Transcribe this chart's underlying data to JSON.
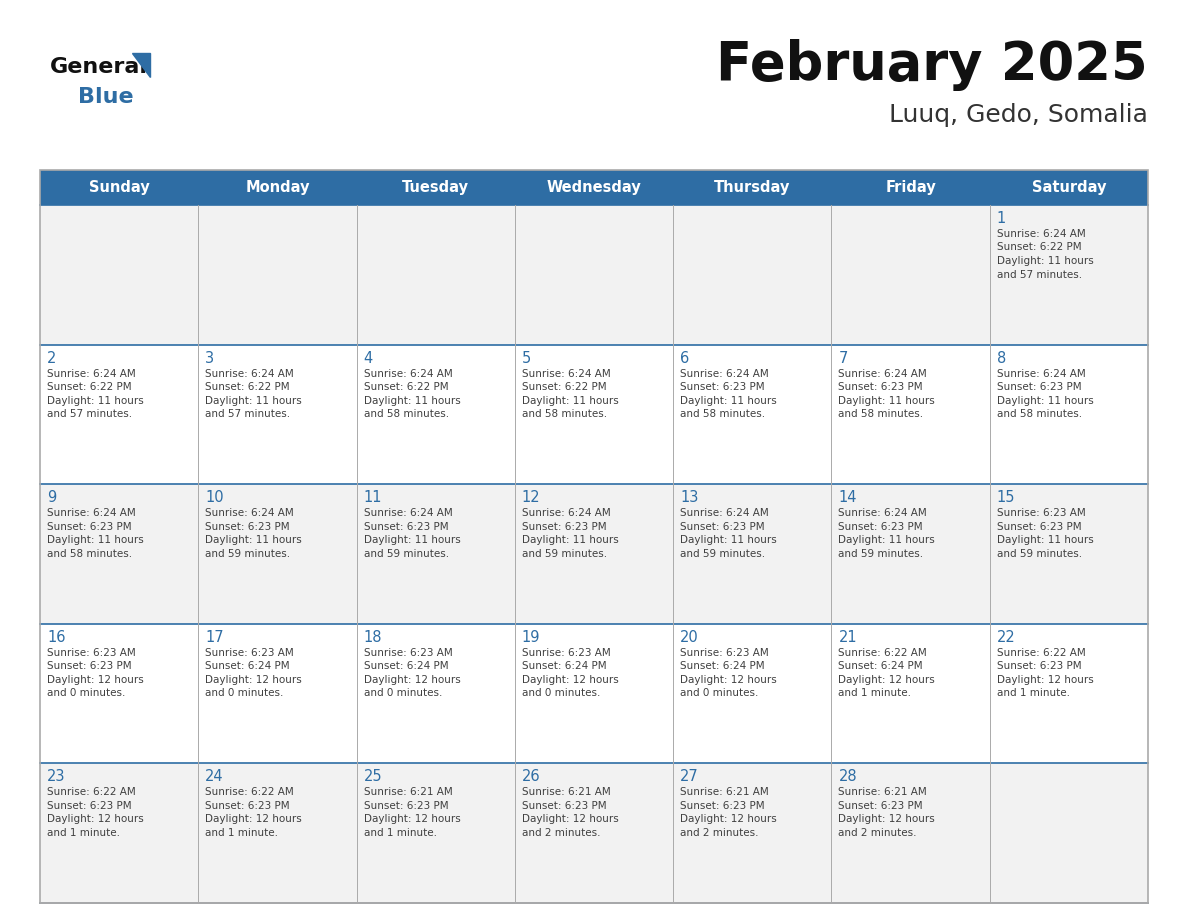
{
  "title": "February 2025",
  "subtitle": "Luuq, Gedo, Somalia",
  "header_bg": "#2E6DA4",
  "header_text_color": "#FFFFFF",
  "cell_bg_odd": "#F2F2F2",
  "cell_bg_even": "#FFFFFF",
  "day_number_color": "#2E6DA4",
  "text_color": "#404040",
  "row_divider_color": "#2E6DA4",
  "col_divider_color": "#AAAAAA",
  "outer_border_color": "#AAAAAA",
  "days_of_week": [
    "Sunday",
    "Monday",
    "Tuesday",
    "Wednesday",
    "Thursday",
    "Friday",
    "Saturday"
  ],
  "calendar_data": [
    [
      null,
      null,
      null,
      null,
      null,
      null,
      {
        "day": "1",
        "sunrise": "Sunrise: 6:24 AM",
        "sunset": "Sunset: 6:22 PM",
        "daylight1": "Daylight: 11 hours",
        "daylight2": "and 57 minutes."
      }
    ],
    [
      {
        "day": "2",
        "sunrise": "Sunrise: 6:24 AM",
        "sunset": "Sunset: 6:22 PM",
        "daylight1": "Daylight: 11 hours",
        "daylight2": "and 57 minutes."
      },
      {
        "day": "3",
        "sunrise": "Sunrise: 6:24 AM",
        "sunset": "Sunset: 6:22 PM",
        "daylight1": "Daylight: 11 hours",
        "daylight2": "and 57 minutes."
      },
      {
        "day": "4",
        "sunrise": "Sunrise: 6:24 AM",
        "sunset": "Sunset: 6:22 PM",
        "daylight1": "Daylight: 11 hours",
        "daylight2": "and 58 minutes."
      },
      {
        "day": "5",
        "sunrise": "Sunrise: 6:24 AM",
        "sunset": "Sunset: 6:22 PM",
        "daylight1": "Daylight: 11 hours",
        "daylight2": "and 58 minutes."
      },
      {
        "day": "6",
        "sunrise": "Sunrise: 6:24 AM",
        "sunset": "Sunset: 6:23 PM",
        "daylight1": "Daylight: 11 hours",
        "daylight2": "and 58 minutes."
      },
      {
        "day": "7",
        "sunrise": "Sunrise: 6:24 AM",
        "sunset": "Sunset: 6:23 PM",
        "daylight1": "Daylight: 11 hours",
        "daylight2": "and 58 minutes."
      },
      {
        "day": "8",
        "sunrise": "Sunrise: 6:24 AM",
        "sunset": "Sunset: 6:23 PM",
        "daylight1": "Daylight: 11 hours",
        "daylight2": "and 58 minutes."
      }
    ],
    [
      {
        "day": "9",
        "sunrise": "Sunrise: 6:24 AM",
        "sunset": "Sunset: 6:23 PM",
        "daylight1": "Daylight: 11 hours",
        "daylight2": "and 58 minutes."
      },
      {
        "day": "10",
        "sunrise": "Sunrise: 6:24 AM",
        "sunset": "Sunset: 6:23 PM",
        "daylight1": "Daylight: 11 hours",
        "daylight2": "and 59 minutes."
      },
      {
        "day": "11",
        "sunrise": "Sunrise: 6:24 AM",
        "sunset": "Sunset: 6:23 PM",
        "daylight1": "Daylight: 11 hours",
        "daylight2": "and 59 minutes."
      },
      {
        "day": "12",
        "sunrise": "Sunrise: 6:24 AM",
        "sunset": "Sunset: 6:23 PM",
        "daylight1": "Daylight: 11 hours",
        "daylight2": "and 59 minutes."
      },
      {
        "day": "13",
        "sunrise": "Sunrise: 6:24 AM",
        "sunset": "Sunset: 6:23 PM",
        "daylight1": "Daylight: 11 hours",
        "daylight2": "and 59 minutes."
      },
      {
        "day": "14",
        "sunrise": "Sunrise: 6:24 AM",
        "sunset": "Sunset: 6:23 PM",
        "daylight1": "Daylight: 11 hours",
        "daylight2": "and 59 minutes."
      },
      {
        "day": "15",
        "sunrise": "Sunrise: 6:23 AM",
        "sunset": "Sunset: 6:23 PM",
        "daylight1": "Daylight: 11 hours",
        "daylight2": "and 59 minutes."
      }
    ],
    [
      {
        "day": "16",
        "sunrise": "Sunrise: 6:23 AM",
        "sunset": "Sunset: 6:23 PM",
        "daylight1": "Daylight: 12 hours",
        "daylight2": "and 0 minutes."
      },
      {
        "day": "17",
        "sunrise": "Sunrise: 6:23 AM",
        "sunset": "Sunset: 6:24 PM",
        "daylight1": "Daylight: 12 hours",
        "daylight2": "and 0 minutes."
      },
      {
        "day": "18",
        "sunrise": "Sunrise: 6:23 AM",
        "sunset": "Sunset: 6:24 PM",
        "daylight1": "Daylight: 12 hours",
        "daylight2": "and 0 minutes."
      },
      {
        "day": "19",
        "sunrise": "Sunrise: 6:23 AM",
        "sunset": "Sunset: 6:24 PM",
        "daylight1": "Daylight: 12 hours",
        "daylight2": "and 0 minutes."
      },
      {
        "day": "20",
        "sunrise": "Sunrise: 6:23 AM",
        "sunset": "Sunset: 6:24 PM",
        "daylight1": "Daylight: 12 hours",
        "daylight2": "and 0 minutes."
      },
      {
        "day": "21",
        "sunrise": "Sunrise: 6:22 AM",
        "sunset": "Sunset: 6:24 PM",
        "daylight1": "Daylight: 12 hours",
        "daylight2": "and 1 minute."
      },
      {
        "day": "22",
        "sunrise": "Sunrise: 6:22 AM",
        "sunset": "Sunset: 6:23 PM",
        "daylight1": "Daylight: 12 hours",
        "daylight2": "and 1 minute."
      }
    ],
    [
      {
        "day": "23",
        "sunrise": "Sunrise: 6:22 AM",
        "sunset": "Sunset: 6:23 PM",
        "daylight1": "Daylight: 12 hours",
        "daylight2": "and 1 minute."
      },
      {
        "day": "24",
        "sunrise": "Sunrise: 6:22 AM",
        "sunset": "Sunset: 6:23 PM",
        "daylight1": "Daylight: 12 hours",
        "daylight2": "and 1 minute."
      },
      {
        "day": "25",
        "sunrise": "Sunrise: 6:21 AM",
        "sunset": "Sunset: 6:23 PM",
        "daylight1": "Daylight: 12 hours",
        "daylight2": "and 1 minute."
      },
      {
        "day": "26",
        "sunrise": "Sunrise: 6:21 AM",
        "sunset": "Sunset: 6:23 PM",
        "daylight1": "Daylight: 12 hours",
        "daylight2": "and 2 minutes."
      },
      {
        "day": "27",
        "sunrise": "Sunrise: 6:21 AM",
        "sunset": "Sunset: 6:23 PM",
        "daylight1": "Daylight: 12 hours",
        "daylight2": "and 2 minutes."
      },
      {
        "day": "28",
        "sunrise": "Sunrise: 6:21 AM",
        "sunset": "Sunset: 6:23 PM",
        "daylight1": "Daylight: 12 hours",
        "daylight2": "and 2 minutes."
      },
      null
    ]
  ],
  "num_weeks": 5,
  "num_cols": 7,
  "fig_width": 11.88,
  "fig_height": 9.18,
  "dpi": 100
}
